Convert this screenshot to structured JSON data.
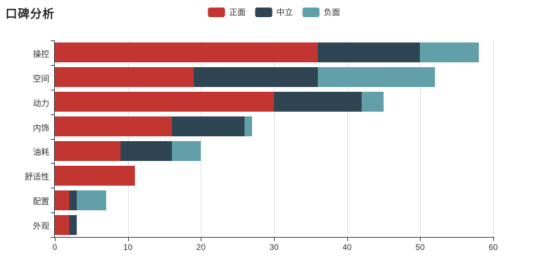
{
  "chart_data": {
    "type": "bar",
    "orientation": "horizontal",
    "stacked": true,
    "title": "口碑分析",
    "categories": [
      "操控",
      "空间",
      "动力",
      "内饰",
      "油耗",
      "舒适性",
      "配置",
      "外观"
    ],
    "categories_order": "top-to-bottom",
    "series": [
      {
        "name": "正面",
        "color": "#c23531",
        "values": [
          36,
          19,
          30,
          16,
          9,
          11,
          2,
          2
        ]
      },
      {
        "name": "中立",
        "color": "#2f4554",
        "values": [
          14,
          17,
          12,
          10,
          7,
          0,
          1,
          1
        ]
      },
      {
        "name": "负面",
        "color": "#61a0a8",
        "values": [
          8,
          16,
          3,
          1,
          4,
          0,
          4,
          0
        ]
      }
    ],
    "totals": [
      58,
      52,
      45,
      27,
      20,
      11,
      7,
      3
    ],
    "xlabel": "",
    "ylabel": "",
    "xlim": [
      0,
      60
    ],
    "x_ticks": [
      0,
      10,
      20,
      30,
      40,
      50,
      60
    ],
    "grid": true,
    "legend_position": "top-center",
    "axis_color": "#333333",
    "gridline_color": "#e0e0e0"
  }
}
